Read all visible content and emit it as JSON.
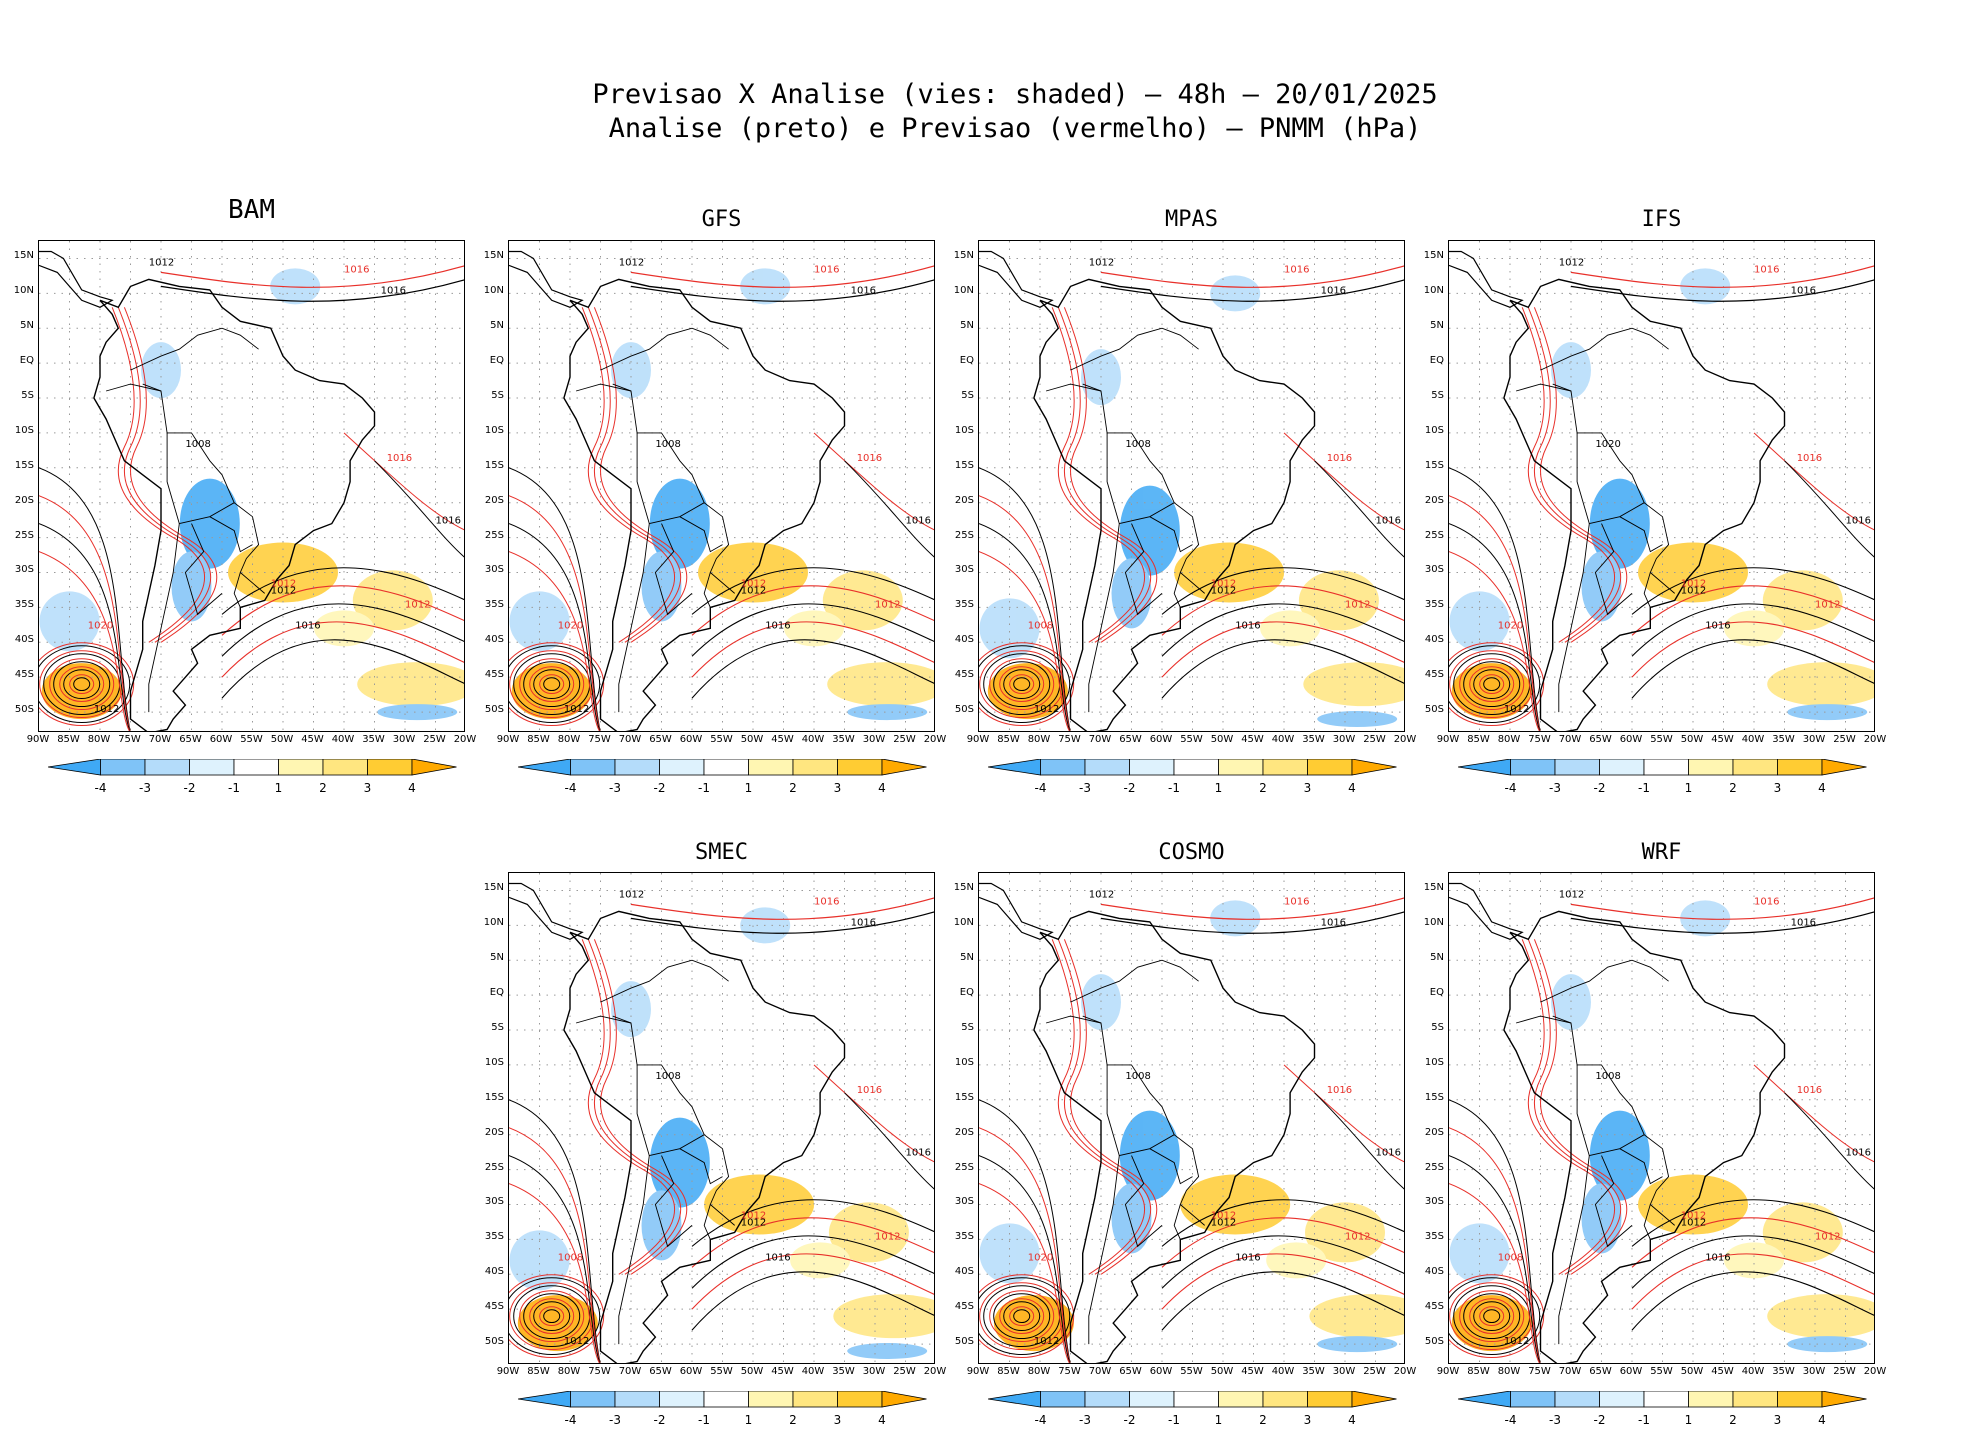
{
  "title": {
    "line1": "Previsao X Analise (vies: shaded) – 48h – 20/01/2025",
    "line2": "Analise (preto) e Previsao (vermelho) – PNMM (hPa)"
  },
  "lat_labels": [
    "15N",
    "10N",
    "5N",
    "EQ",
    "5S",
    "10S",
    "15S",
    "20S",
    "25S",
    "30S",
    "35S",
    "40S",
    "45S",
    "50S"
  ],
  "lon_labels": [
    "90W",
    "85W",
    "80W",
    "75W",
    "70W",
    "65W",
    "60W",
    "55W",
    "50W",
    "45W",
    "40W",
    "35W",
    "30W",
    "25W",
    "20W"
  ],
  "colorbar": {
    "ticks": [
      "-4",
      "-3",
      "-2",
      "-1",
      "1",
      "2",
      "3",
      "4"
    ],
    "colors": [
      "#3fa9f5",
      "#7fc3f7",
      "#b4dcfa",
      "#def2fd",
      "#ffffff",
      "#fff6b2",
      "#ffe680",
      "#ffcc33",
      "#ffaa00"
    ]
  },
  "contour_colors": {
    "analysis": "#000000",
    "forecast": "#e8302a"
  },
  "panels": [
    {
      "id": "bam",
      "name": "BAM",
      "labels": {
        "a1": "1012",
        "a2": "1016",
        "a3": "1008",
        "f1": "1016",
        "f2": "1012",
        "f3": "1020"
      }
    },
    {
      "id": "gfs",
      "name": "GFS",
      "labels": {
        "a1": "1012",
        "a2": "1016",
        "a3": "1008",
        "f1": "1016",
        "f2": "1012",
        "f3": "1020"
      }
    },
    {
      "id": "mpas",
      "name": "MPAS",
      "labels": {
        "a1": "1012",
        "a2": "1016",
        "a3": "1008",
        "f1": "1016",
        "f2": "1012",
        "f3": "1008"
      }
    },
    {
      "id": "ifs",
      "name": "IFS",
      "labels": {
        "a1": "1012",
        "a2": "1016",
        "a3": "1020",
        "f1": "1016",
        "f2": "1012",
        "f3": "1020"
      }
    },
    {
      "id": "smec",
      "name": "SMEC",
      "labels": {
        "a1": "1012",
        "a2": "1016",
        "a3": "1008",
        "f1": "1016",
        "f2": "1012",
        "f3": "1008"
      }
    },
    {
      "id": "cosmo",
      "name": "COSMO",
      "labels": {
        "a1": "1012",
        "a2": "1016",
        "a3": "1008",
        "f1": "1016",
        "f2": "1012",
        "f3": "1020"
      }
    },
    {
      "id": "wrf",
      "name": "WRF",
      "labels": {
        "a1": "1012",
        "a2": "1016",
        "a3": "1008",
        "f1": "1016",
        "f2": "1012",
        "f3": "1008"
      }
    }
  ]
}
